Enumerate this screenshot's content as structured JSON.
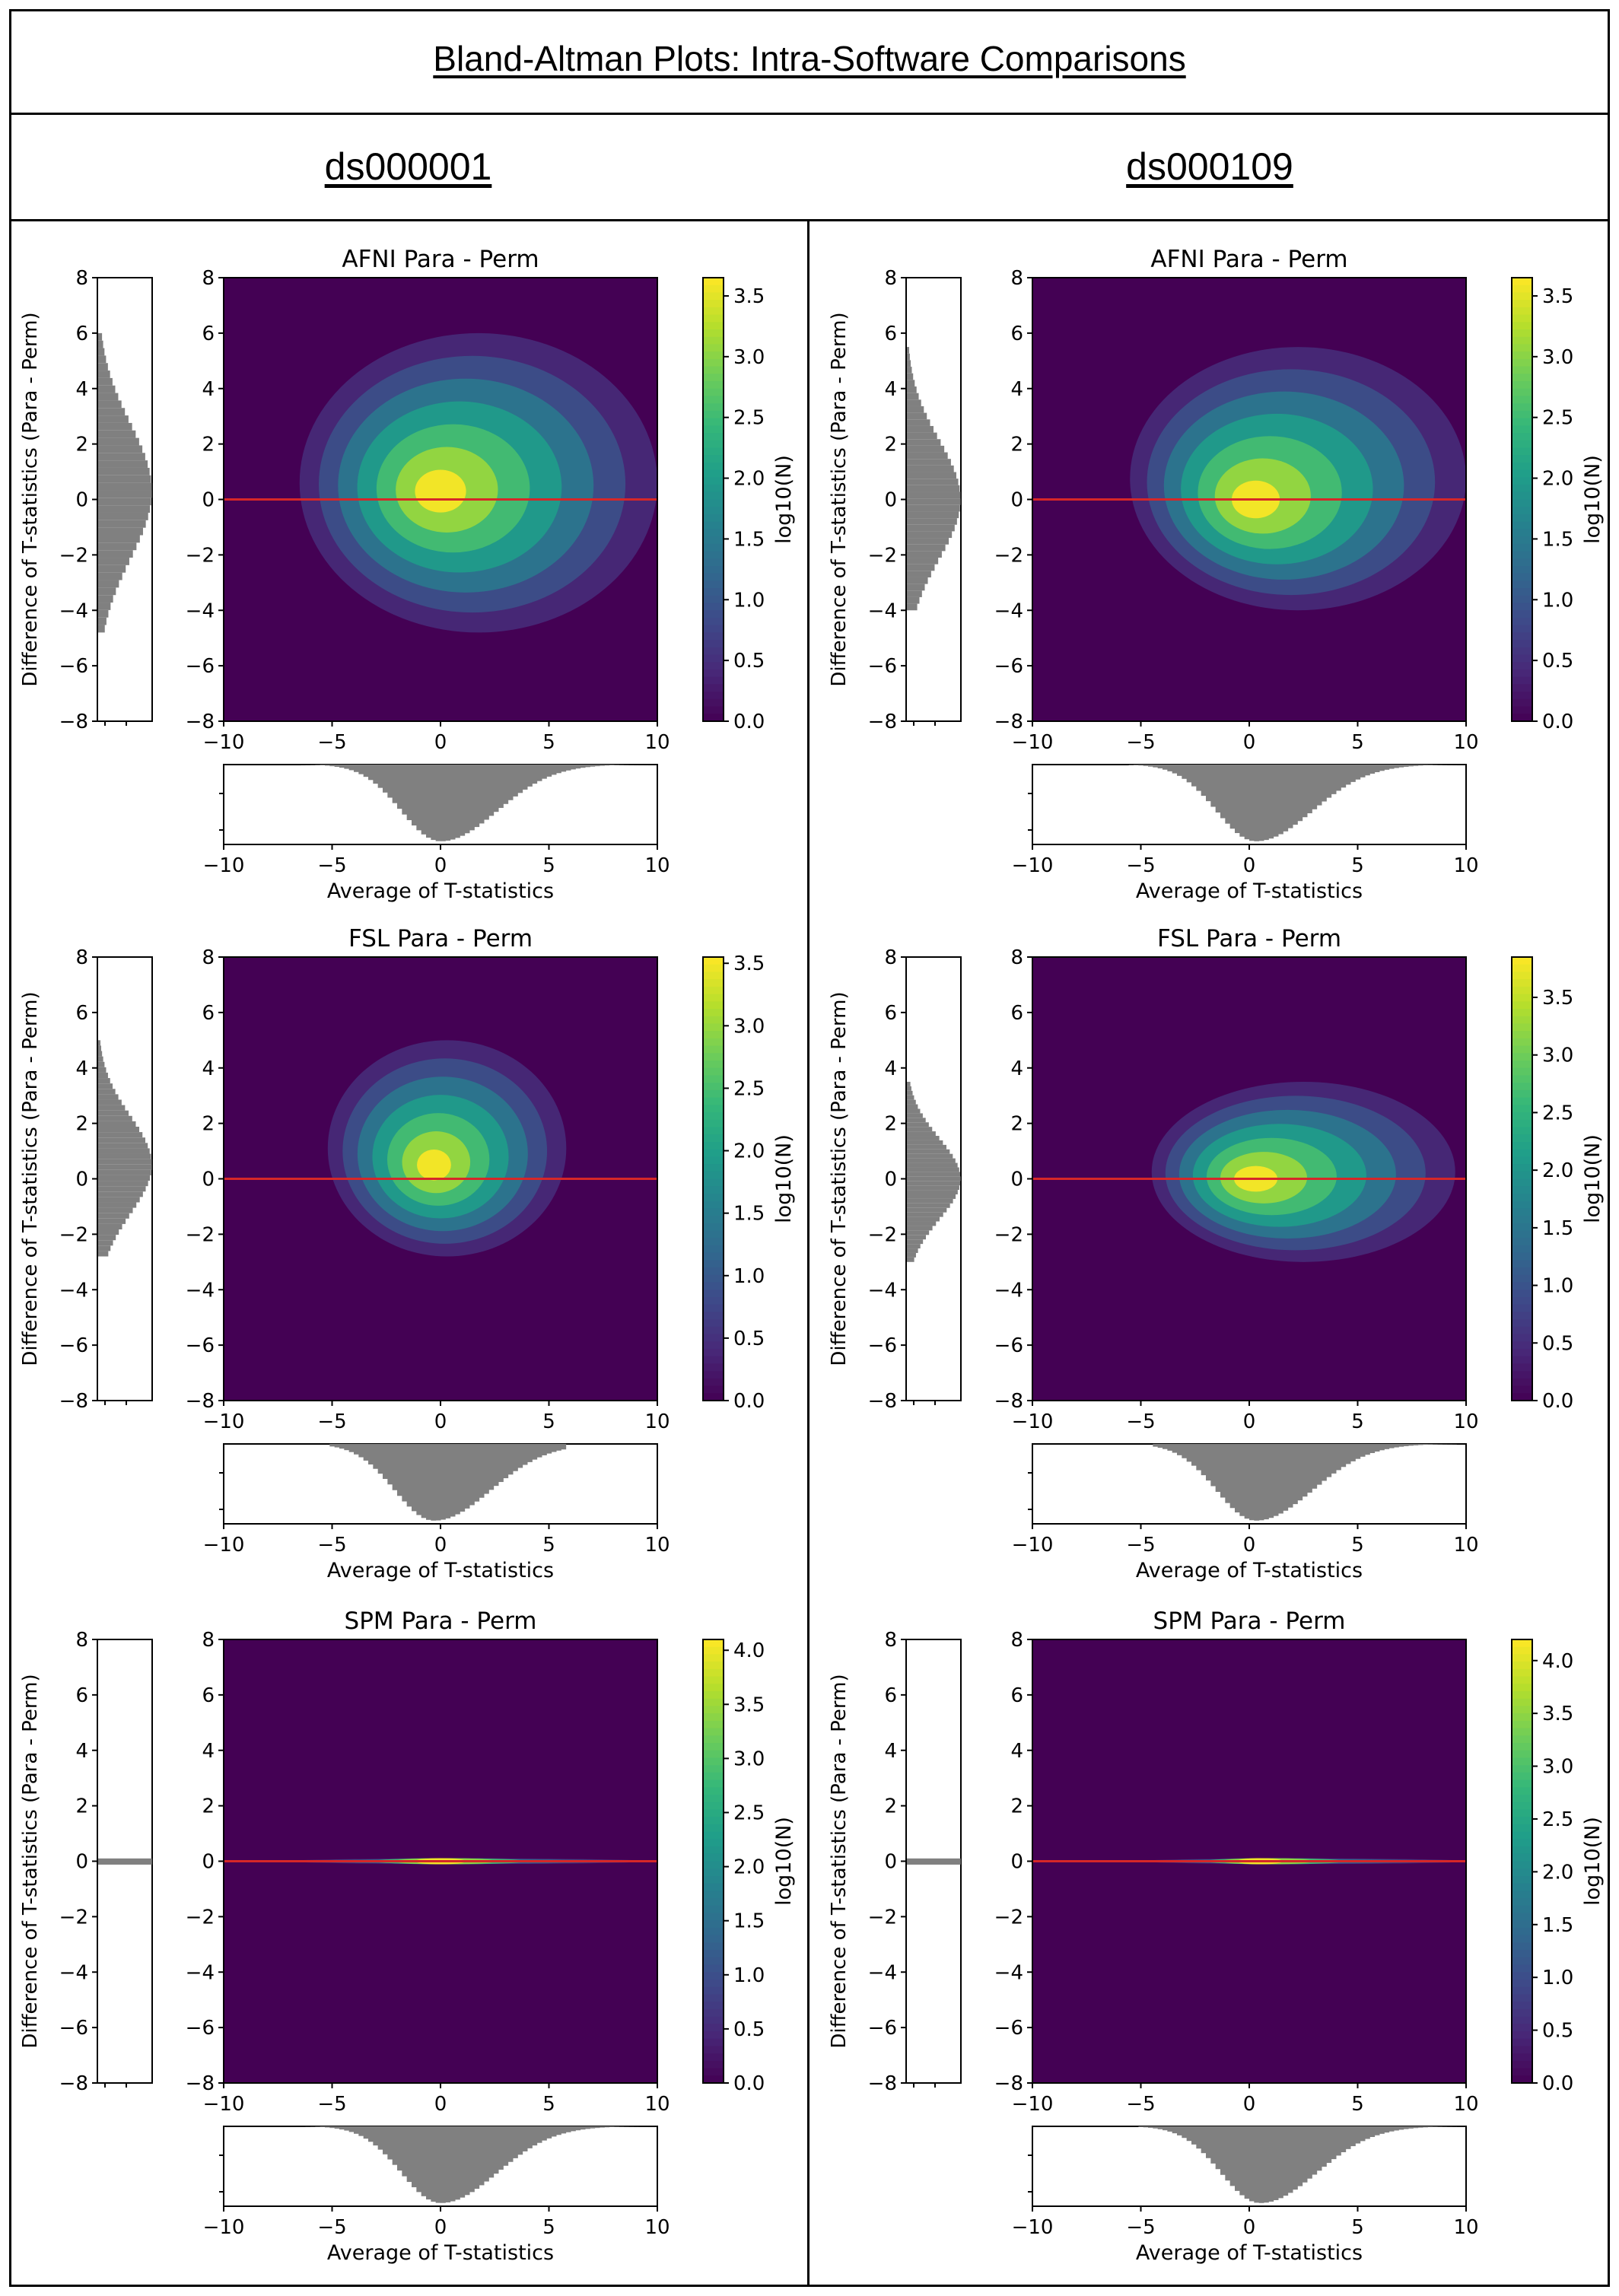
{
  "header": {
    "title": "Bland-Altman Plots: Intra-Software Comparisons"
  },
  "columns": [
    {
      "label": "ds000001"
    },
    {
      "label": "ds000109"
    }
  ],
  "colors": {
    "line": "#d62728",
    "hist": "#808080",
    "colormap": "viridis"
  },
  "chart_data": [
    {
      "type": "heatmap",
      "dataset": "ds000001",
      "title": "AFNI Para - Perm",
      "xlabel": "Average of T-statistics",
      "ylabel": "Difference of T-statistics (Para - Perm)",
      "colorbar_label": "log10(N)",
      "xlim": [
        -10,
        10
      ],
      "ylim": [
        -8,
        8
      ],
      "xticks": [
        -10,
        -5,
        0,
        5,
        10
      ],
      "yticks": [
        -8,
        -6,
        -4,
        -2,
        0,
        2,
        4,
        6,
        8
      ],
      "colorbar_ticks": [
        0.0,
        0.5,
        1.0,
        1.5,
        2.0,
        2.5,
        3.0,
        3.5
      ],
      "colorbar_max": 3.65,
      "reference_line_y": 0,
      "cloud": {
        "center": [
          0.0,
          0.3
        ],
        "x_range": [
          -6.5,
          10
        ],
        "y_range": [
          -4.8,
          6.0
        ]
      }
    },
    {
      "type": "heatmap",
      "dataset": "ds000109",
      "title": "AFNI Para - Perm",
      "xlabel": "Average of T-statistics",
      "ylabel": "Difference of T-statistics (Para - Perm)",
      "colorbar_label": "log10(N)",
      "xlim": [
        -10,
        10
      ],
      "ylim": [
        -8,
        8
      ],
      "xticks": [
        -10,
        -5,
        0,
        5,
        10
      ],
      "yticks": [
        -8,
        -6,
        -4,
        -2,
        0,
        2,
        4,
        6,
        8
      ],
      "colorbar_ticks": [
        0.0,
        0.5,
        1.0,
        1.5,
        2.0,
        2.5,
        3.0,
        3.5
      ],
      "colorbar_max": 3.65,
      "reference_line_y": 0,
      "cloud": {
        "center": [
          0.3,
          0.0
        ],
        "x_range": [
          -5.5,
          10
        ],
        "y_range": [
          -4.0,
          5.5
        ]
      }
    },
    {
      "type": "heatmap",
      "dataset": "ds000001",
      "title": "FSL Para - Perm",
      "xlabel": "Average of T-statistics",
      "ylabel": "Difference of T-statistics (Para - Perm)",
      "colorbar_label": "log10(N)",
      "xlim": [
        -10,
        10
      ],
      "ylim": [
        -8,
        8
      ],
      "xticks": [
        -10,
        -5,
        0,
        5,
        10
      ],
      "yticks": [
        -8,
        -6,
        -4,
        -2,
        0,
        2,
        4,
        6,
        8
      ],
      "colorbar_ticks": [
        0.0,
        0.5,
        1.0,
        1.5,
        2.0,
        2.5,
        3.0,
        3.5
      ],
      "colorbar_max": 3.55,
      "reference_line_y": 0,
      "cloud": {
        "center": [
          -0.3,
          0.5
        ],
        "x_range": [
          -5.2,
          5.8
        ],
        "y_range": [
          -2.8,
          5.0
        ]
      }
    },
    {
      "type": "heatmap",
      "dataset": "ds000109",
      "title": "FSL Para - Perm",
      "xlabel": "Average of T-statistics",
      "ylabel": "Difference of T-statistics (Para - Perm)",
      "colorbar_label": "log10(N)",
      "xlim": [
        -10,
        10
      ],
      "ylim": [
        -8,
        8
      ],
      "xticks": [
        -10,
        -5,
        0,
        5,
        10
      ],
      "yticks": [
        -8,
        -6,
        -4,
        -2,
        0,
        2,
        4,
        6,
        8
      ],
      "colorbar_ticks": [
        0.0,
        0.5,
        1.0,
        1.5,
        2.0,
        2.5,
        3.0,
        3.5
      ],
      "colorbar_max": 3.85,
      "reference_line_y": 0,
      "cloud": {
        "center": [
          0.3,
          0.0
        ],
        "x_range": [
          -4.5,
          9.5
        ],
        "y_range": [
          -3.0,
          3.5
        ]
      }
    },
    {
      "type": "heatmap",
      "dataset": "ds000001",
      "title": "SPM Para - Perm",
      "xlabel": "Average of T-statistics",
      "ylabel": "Difference of T-statistics (Para - Perm)",
      "colorbar_label": "log10(N)",
      "xlim": [
        -10,
        10
      ],
      "ylim": [
        -8,
        8
      ],
      "xticks": [
        -10,
        -5,
        0,
        5,
        10
      ],
      "yticks": [
        -8,
        -6,
        -4,
        -2,
        0,
        2,
        4,
        6,
        8
      ],
      "colorbar_ticks": [
        0.0,
        0.5,
        1.0,
        1.5,
        2.0,
        2.5,
        3.0,
        3.5,
        4.0
      ],
      "colorbar_max": 4.1,
      "reference_line_y": 0,
      "cloud": {
        "center": [
          0.0,
          0.0
        ],
        "x_range": [
          -7.0,
          9.5
        ],
        "y_range": [
          -0.1,
          0.1
        ]
      }
    },
    {
      "type": "heatmap",
      "dataset": "ds000109",
      "title": "SPM Para - Perm",
      "xlabel": "Average of T-statistics",
      "ylabel": "Difference of T-statistics (Para - Perm)",
      "colorbar_label": "log10(N)",
      "xlim": [
        -10,
        10
      ],
      "ylim": [
        -8,
        8
      ],
      "xticks": [
        -10,
        -5,
        0,
        5,
        10
      ],
      "yticks": [
        -8,
        -6,
        -4,
        -2,
        0,
        2,
        4,
        6,
        8
      ],
      "colorbar_ticks": [
        0.0,
        0.5,
        1.0,
        1.5,
        2.0,
        2.5,
        3.0,
        3.5,
        4.0
      ],
      "colorbar_max": 4.2,
      "reference_line_y": 0,
      "cloud": {
        "center": [
          0.5,
          0.0
        ],
        "x_range": [
          -5.0,
          10
        ],
        "y_range": [
          -0.1,
          0.1
        ]
      }
    }
  ]
}
